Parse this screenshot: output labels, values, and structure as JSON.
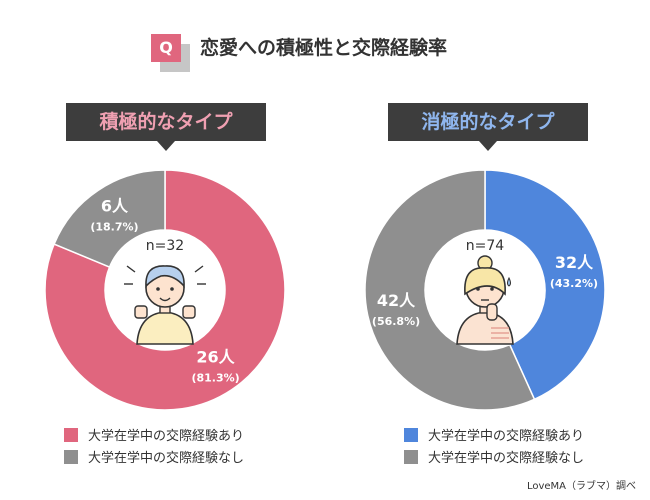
{
  "header": {
    "q_label": "Q",
    "title": "恋愛への積極性と交際経験率"
  },
  "chart_data": [
    {
      "type": "pie",
      "title": "積極的なタイプ",
      "n_label": "n=32",
      "categories": [
        "大学在学中の交際経験あり",
        "大学在学中の交際経験なし"
      ],
      "values": [
        26,
        6
      ],
      "value_labels": [
        "26人",
        "6人"
      ],
      "percent_labels": [
        "(81.3%)",
        "(18.7%)"
      ],
      "colors": [
        "#e0667e",
        "#8f8f8f"
      ]
    },
    {
      "type": "pie",
      "title": "消極的なタイプ",
      "n_label": "n=74",
      "categories": [
        "大学在学中の交際経験あり",
        "大学在学中の交際経験なし"
      ],
      "values": [
        32,
        42
      ],
      "value_labels": [
        "32人",
        "42人"
      ],
      "percent_labels": [
        "(43.2%)",
        "(56.8%)"
      ],
      "colors": [
        "#4f86dc",
        "#8f8f8f"
      ]
    }
  ],
  "source": "LoveMA（ラブマ）調べ"
}
